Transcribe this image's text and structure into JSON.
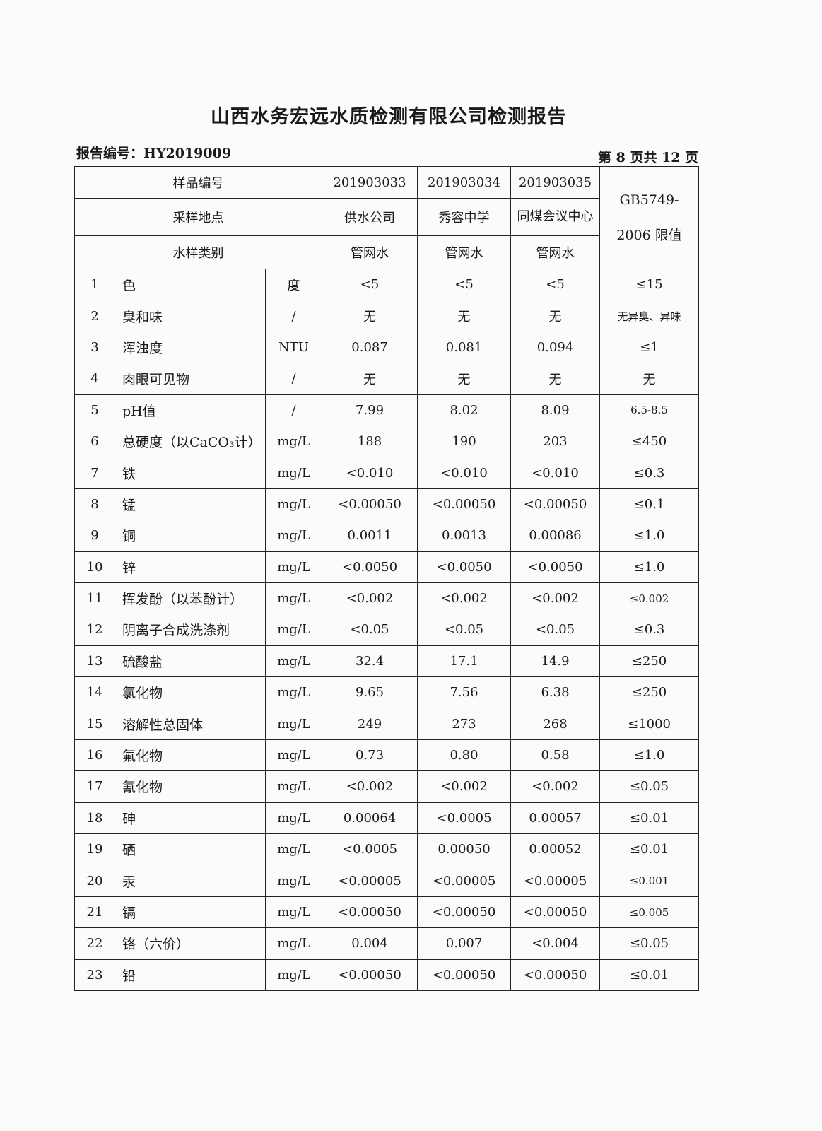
{
  "title": "山西水务宏远水质检测有限公司检测报告",
  "report_no": "报告编号：HY2019009",
  "page_info": "第 8 页共 12 页",
  "header": {
    "sample_no_label": "样品编号",
    "location_label": "采样地点",
    "type_label": "水样类别",
    "standard_line1": "GB5749-",
    "standard_line2": "2006 限值",
    "samples": [
      {
        "no": "201903033",
        "location": "供水公司",
        "type": "管网水"
      },
      {
        "no": "201903034",
        "location": "秀容中学",
        "type": "管网水"
      },
      {
        "no": "201903035",
        "location": "同煤会议中心",
        "type": "管网水"
      }
    ]
  },
  "rows": [
    {
      "n": "1",
      "item": "色",
      "unit": "度",
      "v": [
        "<5",
        "<5",
        "<5"
      ],
      "limit": "≤15"
    },
    {
      "n": "2",
      "item": "臭和味",
      "unit": "/",
      "v": [
        "无",
        "无",
        "无"
      ],
      "limit": "无异臭、异味"
    },
    {
      "n": "3",
      "item": "浑浊度",
      "unit": "NTU",
      "v": [
        "0.087",
        "0.081",
        "0.094"
      ],
      "limit": "≤1"
    },
    {
      "n": "4",
      "item": "肉眼可见物",
      "unit": "/",
      "v": [
        "无",
        "无",
        "无"
      ],
      "limit": "无"
    },
    {
      "n": "5",
      "item": "pH值",
      "unit": "/",
      "v": [
        "7.99",
        "8.02",
        "8.09"
      ],
      "limit": "6.5-8.5"
    },
    {
      "n": "6",
      "item": "总硬度（以CaCO₃计）",
      "unit": "mg/L",
      "v": [
        "188",
        "190",
        "203"
      ],
      "limit": "≤450"
    },
    {
      "n": "7",
      "item": "铁",
      "unit": "mg/L",
      "v": [
        "<0.010",
        "<0.010",
        "<0.010"
      ],
      "limit": "≤0.3"
    },
    {
      "n": "8",
      "item": "锰",
      "unit": "mg/L",
      "v": [
        "<0.00050",
        "<0.00050",
        "<0.00050"
      ],
      "limit": "≤0.1"
    },
    {
      "n": "9",
      "item": "铜",
      "unit": "mg/L",
      "v": [
        "0.0011",
        "0.0013",
        "0.00086"
      ],
      "limit": "≤1.0"
    },
    {
      "n": "10",
      "item": "锌",
      "unit": "mg/L",
      "v": [
        "<0.0050",
        "<0.0050",
        "<0.0050"
      ],
      "limit": "≤1.0"
    },
    {
      "n": "11",
      "item": "挥发酚（以苯酚计）",
      "unit": "mg/L",
      "v": [
        "<0.002",
        "<0.002",
        "<0.002"
      ],
      "limit": "≤0.002"
    },
    {
      "n": "12",
      "item": "阴离子合成洗涤剂",
      "unit": "mg/L",
      "v": [
        "<0.05",
        "<0.05",
        "<0.05"
      ],
      "limit": "≤0.3"
    },
    {
      "n": "13",
      "item": "硫酸盐",
      "unit": "mg/L",
      "v": [
        "32.4",
        "17.1",
        "14.9"
      ],
      "limit": "≤250"
    },
    {
      "n": "14",
      "item": "氯化物",
      "unit": "mg/L",
      "v": [
        "9.65",
        "7.56",
        "6.38"
      ],
      "limit": "≤250"
    },
    {
      "n": "15",
      "item": "溶解性总固体",
      "unit": "mg/L",
      "v": [
        "249",
        "273",
        "268"
      ],
      "limit": "≤1000"
    },
    {
      "n": "16",
      "item": "氟化物",
      "unit": "mg/L",
      "v": [
        "0.73",
        "0.80",
        "0.58"
      ],
      "limit": "≤1.0"
    },
    {
      "n": "17",
      "item": "氰化物",
      "unit": "mg/L",
      "v": [
        "<0.002",
        "<0.002",
        "<0.002"
      ],
      "limit": "≤0.05"
    },
    {
      "n": "18",
      "item": "砷",
      "unit": "mg/L",
      "v": [
        "0.00064",
        "<0.0005",
        "0.00057"
      ],
      "limit": "≤0.01"
    },
    {
      "n": "19",
      "item": "硒",
      "unit": "mg/L",
      "v": [
        "<0.0005",
        "0.00050",
        "0.00052"
      ],
      "limit": "≤0.01"
    },
    {
      "n": "20",
      "item": "汞",
      "unit": "mg/L",
      "v": [
        "<0.00005",
        "<0.00005",
        "<0.00005"
      ],
      "limit": "≤0.001"
    },
    {
      "n": "21",
      "item": "镉",
      "unit": "mg/L",
      "v": [
        "<0.00050",
        "<0.00050",
        "<0.00050"
      ],
      "limit": "≤0.005"
    },
    {
      "n": "22",
      "item": "铬（六价）",
      "unit": "mg/L",
      "v": [
        "0.004",
        "0.007",
        "<0.004"
      ],
      "limit": "≤0.05"
    },
    {
      "n": "23",
      "item": "铅",
      "unit": "mg/L",
      "v": [
        "<0.00050",
        "<0.00050",
        "<0.00050"
      ],
      "limit": "≤0.01"
    }
  ]
}
